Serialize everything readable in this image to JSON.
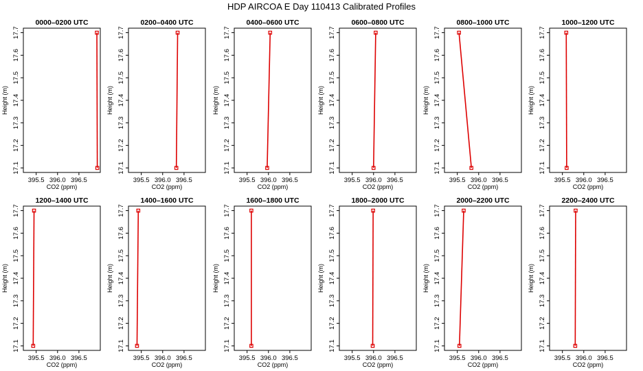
{
  "chart_data": {
    "type": "line",
    "title": "HDP AIRCOA E  Day 110413  Calibrated Profiles",
    "xlabel": "CO2 (ppm)",
    "ylabel": "Height (m)",
    "xlim": [
      395.2,
      397.0
    ],
    "ylim": [
      17.08,
      17.72
    ],
    "xticks": [
      "395.5",
      "396.0",
      "396.5"
    ],
    "yticks": [
      "17.1",
      "17.2",
      "17.3",
      "17.4",
      "17.5",
      "17.6",
      "17.7"
    ],
    "colors": {
      "series": "#dd0000",
      "axis": "#000000"
    },
    "panels": [
      {
        "title": "0000–0200 UTC",
        "points": [
          {
            "x": 396.93,
            "y": 17.1
          },
          {
            "x": 396.92,
            "y": 17.7
          }
        ]
      },
      {
        "title": "0200–0400 UTC",
        "points": [
          {
            "x": 396.32,
            "y": 17.1
          },
          {
            "x": 396.35,
            "y": 17.7
          }
        ]
      },
      {
        "title": "0400–0600 UTC",
        "points": [
          {
            "x": 395.97,
            "y": 17.1
          },
          {
            "x": 396.04,
            "y": 17.7
          }
        ]
      },
      {
        "title": "0600–0800 UTC",
        "points": [
          {
            "x": 396.0,
            "y": 17.1
          },
          {
            "x": 396.05,
            "y": 17.7
          }
        ]
      },
      {
        "title": "0800–1000 UTC",
        "points": [
          {
            "x": 395.83,
            "y": 17.1
          },
          {
            "x": 395.54,
            "y": 17.7
          }
        ]
      },
      {
        "title": "1000–1200 UTC",
        "points": [
          {
            "x": 395.6,
            "y": 17.1
          },
          {
            "x": 395.59,
            "y": 17.7
          }
        ]
      },
      {
        "title": "1200–1400 UTC",
        "points": [
          {
            "x": 395.43,
            "y": 17.1
          },
          {
            "x": 395.45,
            "y": 17.7
          }
        ]
      },
      {
        "title": "1400–1600 UTC",
        "points": [
          {
            "x": 395.4,
            "y": 17.1
          },
          {
            "x": 395.43,
            "y": 17.7
          }
        ]
      },
      {
        "title": "1600–1800 UTC",
        "points": [
          {
            "x": 395.6,
            "y": 17.1
          },
          {
            "x": 395.6,
            "y": 17.7
          }
        ]
      },
      {
        "title": "1800–2000 UTC",
        "points": [
          {
            "x": 395.98,
            "y": 17.1
          },
          {
            "x": 395.99,
            "y": 17.7
          }
        ]
      },
      {
        "title": "2000–2200 UTC",
        "points": [
          {
            "x": 395.55,
            "y": 17.1
          },
          {
            "x": 395.65,
            "y": 17.7
          }
        ]
      },
      {
        "title": "2200–2400 UTC",
        "points": [
          {
            "x": 395.8,
            "y": 17.1
          },
          {
            "x": 395.81,
            "y": 17.7
          }
        ]
      }
    ]
  }
}
